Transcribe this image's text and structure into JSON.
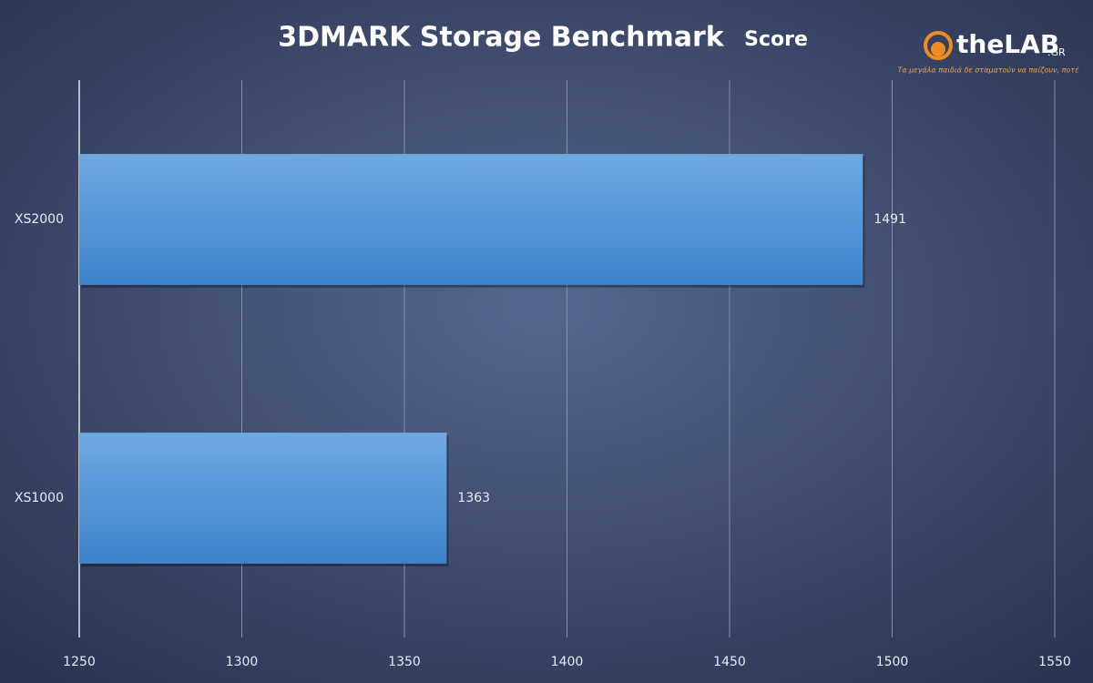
{
  "chart_data": {
    "type": "barh",
    "title": "3DMARK Storage Benchmark",
    "title_suffix": "Score",
    "categories": [
      "XS2000",
      "XS1000"
    ],
    "values": [
      1491,
      1363
    ],
    "color": "#5598db",
    "xlim": [
      1250,
      1550
    ],
    "xticks": [
      1250,
      1300,
      1350,
      1400,
      1450,
      1500,
      1550
    ],
    "grid": true
  },
  "logo": {
    "text": "theLAB",
    "suffix": ".GR",
    "tagline": "Τα μεγάλα παιδιά δε σταματούν να παίζουν, ποτέ"
  }
}
